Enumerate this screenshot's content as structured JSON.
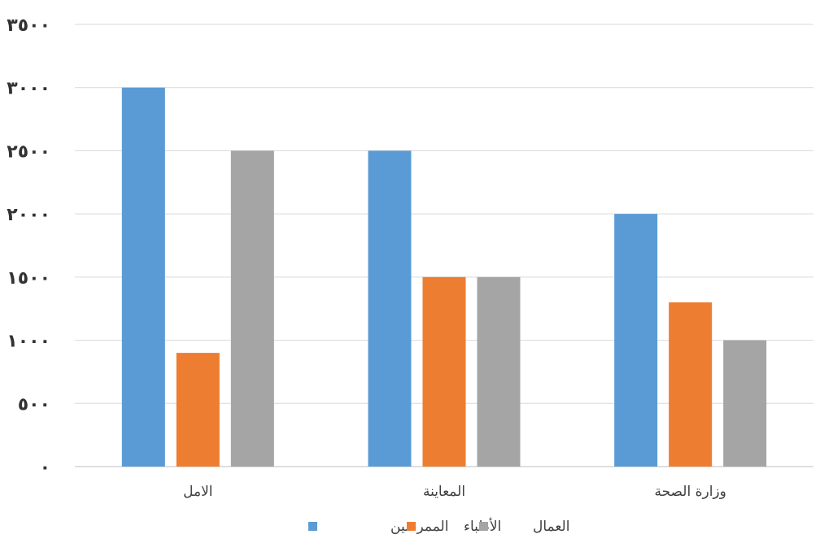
{
  "chart_data": {
    "type": "bar",
    "categories": [
      "الامل",
      "المعاينة",
      "وزارة الصحة"
    ],
    "series": [
      {
        "name": "الممرضين",
        "color": "#5B9BD5",
        "values": [
          3000,
          2500,
          2000
        ]
      },
      {
        "name": "الأطباء",
        "color": "#ED7D31",
        "values": [
          900,
          1500,
          1300
        ]
      },
      {
        "name": "العمال",
        "color": "#A5A5A5",
        "values": [
          2500,
          1500,
          1000
        ]
      }
    ],
    "ylim": [
      0,
      3500
    ],
    "yticks": [
      0,
      500,
      1000,
      1500,
      2000,
      2500,
      3000,
      3500
    ],
    "ytick_labels": [
      "٠",
      "٥٠٠",
      "١٠٠٠",
      "١٥٠٠",
      "٢٠٠٠",
      "٢٥٠٠",
      "٣٠٠٠",
      "٣٥٠٠"
    ],
    "grid": true,
    "legend": "bottom-center",
    "title": "",
    "xlabel": "",
    "ylabel": ""
  }
}
